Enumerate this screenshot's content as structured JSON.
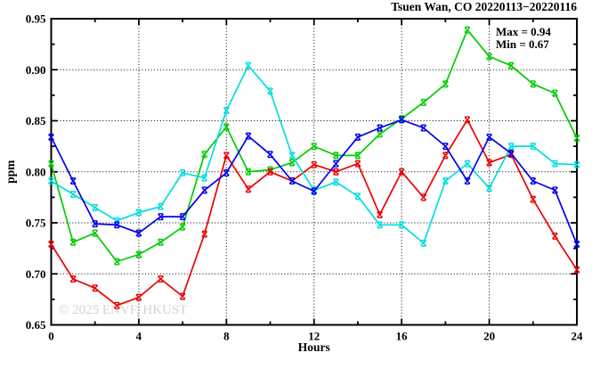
{
  "page": {
    "background": "#ffffff"
  },
  "chart_data": {
    "type": "line",
    "title": "Tsuen Wan, CO 20220113−20220116",
    "xlabel": "Hours",
    "ylabel": "ppm",
    "annotations": {
      "max_label": "Max = 0.94",
      "min_label": "Min = 0.67"
    },
    "watermark": "© 2025 ENVF, HKUST",
    "xlim": [
      0,
      24
    ],
    "ylim": [
      0.65,
      0.95
    ],
    "x_major_ticks": [
      0,
      4,
      8,
      12,
      16,
      20,
      24
    ],
    "x_minor_ticks": [
      2,
      6,
      10,
      14,
      18,
      22
    ],
    "y_major_ticks": [
      0.65,
      0.7,
      0.75,
      0.8,
      0.85,
      0.9,
      0.95
    ],
    "y_minor_ticks": [
      0.675,
      0.725,
      0.775,
      0.825,
      0.875,
      0.925
    ],
    "grid_x": [
      4,
      8,
      12,
      16,
      20
    ],
    "grid_y": [
      0.7,
      0.75,
      0.8,
      0.85,
      0.9
    ],
    "grid_on": true,
    "legend": "none",
    "x": [
      0,
      1,
      2,
      3,
      4,
      5,
      6,
      7,
      8,
      9,
      10,
      11,
      12,
      13,
      14,
      15,
      16,
      17,
      18,
      19,
      20,
      21,
      22,
      23,
      24
    ],
    "series": [
      {
        "name": "green",
        "color": "#00cc00",
        "values": [
          0.808,
          0.731,
          0.74,
          0.712,
          0.719,
          0.731,
          0.746,
          0.817,
          0.844,
          0.8,
          0.802,
          0.809,
          0.825,
          0.816,
          0.816,
          0.837,
          0.852,
          0.868,
          0.886,
          0.939,
          0.913,
          0.904,
          0.886,
          0.877,
          0.833
        ]
      },
      {
        "name": "red",
        "color": "#ee0000",
        "values": [
          0.729,
          0.695,
          0.686,
          0.669,
          0.677,
          0.695,
          0.678,
          0.739,
          0.816,
          0.783,
          0.8,
          0.791,
          0.807,
          0.8,
          0.808,
          0.758,
          0.8,
          0.775,
          0.816,
          0.851,
          0.809,
          0.817,
          0.773,
          0.737,
          0.704
        ]
      },
      {
        "name": "cyan",
        "color": "#00dede",
        "values": [
          0.791,
          0.778,
          0.765,
          0.752,
          0.76,
          0.766,
          0.799,
          0.794,
          0.86,
          0.904,
          0.879,
          0.816,
          0.782,
          0.79,
          0.776,
          0.748,
          0.748,
          0.73,
          0.791,
          0.808,
          0.784,
          0.825,
          0.825,
          0.808,
          0.807
        ]
      },
      {
        "name": "blue",
        "color": "#0000ee",
        "values": [
          0.834,
          0.791,
          0.749,
          0.748,
          0.74,
          0.756,
          0.756,
          0.782,
          0.799,
          0.835,
          0.817,
          0.791,
          0.781,
          0.808,
          0.834,
          0.843,
          0.851,
          0.843,
          0.825,
          0.791,
          0.834,
          0.818,
          0.791,
          0.782,
          0.729
        ]
      }
    ]
  }
}
